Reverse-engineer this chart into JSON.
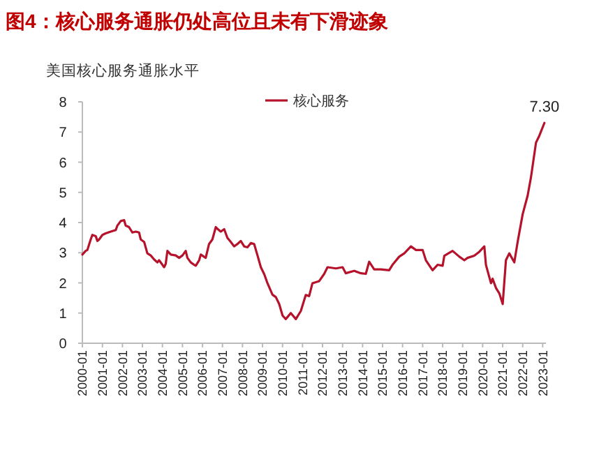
{
  "chart_data": {
    "type": "line",
    "title": "图4：核心服务通胀仍处高位且未有下滑迹象",
    "ylabel": "美国核心服务通胀水平",
    "xlim": [
      "2000-01",
      "2023-03"
    ],
    "xticks": [
      "2000-01",
      "2001-01",
      "2002-01",
      "2003-01",
      "2004-01",
      "2005-01",
      "2006-01",
      "2007-01",
      "2008-01",
      "2009-01",
      "2010-01",
      "2011-01",
      "2012-01",
      "2013-01",
      "2014-01",
      "2015-01",
      "2016-01",
      "2017-01",
      "2018-01",
      "2019-01",
      "2020-01",
      "2021-01",
      "2022-01",
      "2023-01"
    ],
    "ylim": [
      0,
      8
    ],
    "yticks": [
      0,
      1,
      2,
      3,
      4,
      5,
      6,
      7,
      8
    ],
    "grid": false,
    "legend": "top",
    "marker": "none",
    "line_style": "solid",
    "series": [
      {
        "name": "核心服务",
        "color": "#b5132b",
        "x": [
          "2000-01",
          "2000-03",
          "2000-04",
          "2000-06",
          "2000-07",
          "2000-09",
          "2000-10",
          "2000-11",
          "2001-01",
          "2001-03",
          "2001-06",
          "2001-09",
          "2001-10",
          "2001-12",
          "2002-02",
          "2002-03",
          "2002-05",
          "2002-07",
          "2002-09",
          "2002-11",
          "2002-12",
          "2003-02",
          "2003-04",
          "2003-06",
          "2003-08",
          "2003-10",
          "2003-11",
          "2004-01",
          "2004-02",
          "2004-03",
          "2004-04",
          "2004-06",
          "2004-09",
          "2004-11",
          "2005-01",
          "2005-03",
          "2005-04",
          "2005-06",
          "2005-08",
          "2005-09",
          "2005-11",
          "2005-12",
          "2006-03",
          "2006-05",
          "2006-07",
          "2006-09",
          "2006-10",
          "2006-12",
          "2007-02",
          "2007-04",
          "2007-06",
          "2007-08",
          "2007-10",
          "2007-12",
          "2008-02",
          "2008-04",
          "2008-06",
          "2008-08",
          "2008-10",
          "2008-12",
          "2009-02",
          "2009-04",
          "2009-07",
          "2009-09",
          "2009-11",
          "2010-01",
          "2010-03",
          "2010-06",
          "2010-09",
          "2010-12",
          "2011-03",
          "2011-05",
          "2011-07",
          "2011-11",
          "2012-02",
          "2012-04",
          "2012-09",
          "2013-01",
          "2013-03",
          "2013-08",
          "2013-12",
          "2014-03",
          "2014-05",
          "2014-08",
          "2014-12",
          "2015-05",
          "2015-07",
          "2015-11",
          "2016-02",
          "2016-06",
          "2016-09",
          "2017-01",
          "2017-03",
          "2017-07",
          "2017-10",
          "2018-01",
          "2018-02",
          "2018-07",
          "2018-11",
          "2019-02",
          "2019-04",
          "2019-08",
          "2019-11",
          "2020-02",
          "2020-03",
          "2020-06",
          "2020-07",
          "2020-09",
          "2020-11",
          "2021-01",
          "2021-03",
          "2021-05",
          "2021-08",
          "2021-10",
          "2022-01",
          "2022-04",
          "2022-06",
          "2022-09",
          "2022-11",
          "2023-02"
        ],
        "values": [
          2.94,
          3.06,
          3.09,
          3.44,
          3.59,
          3.55,
          3.39,
          3.44,
          3.59,
          3.64,
          3.7,
          3.75,
          3.9,
          4.05,
          4.08,
          3.9,
          3.85,
          3.67,
          3.7,
          3.67,
          3.44,
          3.36,
          2.98,
          2.91,
          2.78,
          2.68,
          2.75,
          2.6,
          2.52,
          2.63,
          3.06,
          2.94,
          2.91,
          2.83,
          2.91,
          3.06,
          2.83,
          2.68,
          2.6,
          2.57,
          2.75,
          2.94,
          2.83,
          3.29,
          3.44,
          3.85,
          3.79,
          3.7,
          3.78,
          3.49,
          3.36,
          3.21,
          3.29,
          3.39,
          3.21,
          3.18,
          3.32,
          3.29,
          2.91,
          2.52,
          2.29,
          1.99,
          1.61,
          1.53,
          1.3,
          0.92,
          0.8,
          1.0,
          0.8,
          1.07,
          1.6,
          1.56,
          1.99,
          2.06,
          2.3,
          2.52,
          2.48,
          2.52,
          2.32,
          2.4,
          2.32,
          2.3,
          2.7,
          2.45,
          2.45,
          2.42,
          2.6,
          2.87,
          2.98,
          3.21,
          3.09,
          3.09,
          2.75,
          2.42,
          2.6,
          2.57,
          2.9,
          3.06,
          2.87,
          2.75,
          2.83,
          2.9,
          3.03,
          3.21,
          2.6,
          1.99,
          2.14,
          1.83,
          1.65,
          1.3,
          2.75,
          2.98,
          2.68,
          3.36,
          4.28,
          4.89,
          5.5,
          6.65,
          6.88,
          7.3
        ]
      }
    ],
    "annotations": [
      {
        "text": "7.30",
        "x": "2023-02",
        "y": 7.3
      }
    ]
  }
}
